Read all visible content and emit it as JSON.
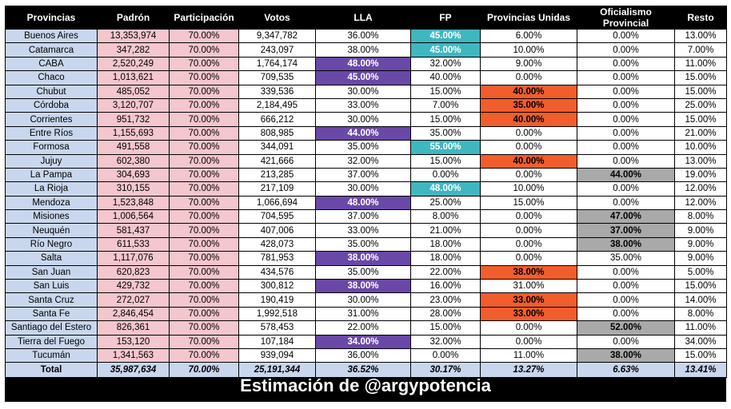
{
  "headers": [
    "Provincias",
    "Padrón",
    "Participación",
    "Votos",
    "LLA",
    "FP",
    "Provincias Unidas",
    "Oficialismo Provincial",
    "Resto"
  ],
  "rows": [
    {
      "province": "Buenos Aires",
      "padron": "13,353,974",
      "part": "70.00%",
      "votos": "9,347,782",
      "lla": "36.00%",
      "fp": "45.00%",
      "pu": "6.00%",
      "op": "0.00%",
      "resto": "13.00%",
      "winner": "fp"
    },
    {
      "province": "Catamarca",
      "padron": "347,282",
      "part": "70.00%",
      "votos": "243,097",
      "lla": "38.00%",
      "fp": "45.00%",
      "pu": "10.00%",
      "op": "0.00%",
      "resto": "7.00%",
      "winner": "fp"
    },
    {
      "province": "CABA",
      "padron": "2,520,249",
      "part": "70.00%",
      "votos": "1,764,174",
      "lla": "48.00%",
      "fp": "32.00%",
      "pu": "9.00%",
      "op": "0.00%",
      "resto": "11.00%",
      "winner": "lla"
    },
    {
      "province": "Chaco",
      "padron": "1,013,621",
      "part": "70.00%",
      "votos": "709,535",
      "lla": "45.00%",
      "fp": "40.00%",
      "pu": "0.00%",
      "op": "0.00%",
      "resto": "15.00%",
      "winner": "lla"
    },
    {
      "province": "Chubut",
      "padron": "485,052",
      "part": "70.00%",
      "votos": "339,536",
      "lla": "30.00%",
      "fp": "15.00%",
      "pu": "40.00%",
      "op": "0.00%",
      "resto": "15.00%",
      "winner": "pu"
    },
    {
      "province": "Córdoba",
      "padron": "3,120,707",
      "part": "70.00%",
      "votos": "2,184,495",
      "lla": "33.00%",
      "fp": "7.00%",
      "pu": "35.00%",
      "op": "0.00%",
      "resto": "25.00%",
      "winner": "pu"
    },
    {
      "province": "Corrientes",
      "padron": "951,732",
      "part": "70.00%",
      "votos": "666,212",
      "lla": "30.00%",
      "fp": "15.00%",
      "pu": "40.00%",
      "op": "0.00%",
      "resto": "15.00%",
      "winner": "pu"
    },
    {
      "province": "Entre Ríos",
      "padron": "1,155,693",
      "part": "70.00%",
      "votos": "808,985",
      "lla": "44.00%",
      "fp": "35.00%",
      "pu": "0.00%",
      "op": "0.00%",
      "resto": "21.00%",
      "winner": "lla"
    },
    {
      "province": "Formosa",
      "padron": "491,558",
      "part": "70.00%",
      "votos": "344,091",
      "lla": "35.00%",
      "fp": "55.00%",
      "pu": "0.00%",
      "op": "0.00%",
      "resto": "10.00%",
      "winner": "fp"
    },
    {
      "province": "Jujuy",
      "padron": "602,380",
      "part": "70.00%",
      "votos": "421,666",
      "lla": "32.00%",
      "fp": "15.00%",
      "pu": "40.00%",
      "op": "0.00%",
      "resto": "13.00%",
      "winner": "pu"
    },
    {
      "province": "La Pampa",
      "padron": "304,693",
      "part": "70.00%",
      "votos": "213,285",
      "lla": "37.00%",
      "fp": "0.00%",
      "pu": "0.00%",
      "op": "44.00%",
      "resto": "19.00%",
      "winner": "op"
    },
    {
      "province": "La Rioja",
      "padron": "310,155",
      "part": "70.00%",
      "votos": "217,109",
      "lla": "30.00%",
      "fp": "48.00%",
      "pu": "10.00%",
      "op": "0.00%",
      "resto": "12.00%",
      "winner": "fp"
    },
    {
      "province": "Mendoza",
      "padron": "1,523,848",
      "part": "70.00%",
      "votos": "1,066,694",
      "lla": "48.00%",
      "fp": "25.00%",
      "pu": "15.00%",
      "op": "0.00%",
      "resto": "12.00%",
      "winner": "lla"
    },
    {
      "province": "Misiones",
      "padron": "1,006,564",
      "part": "70.00%",
      "votos": "704,595",
      "lla": "37.00%",
      "fp": "8.00%",
      "pu": "0.00%",
      "op": "47.00%",
      "resto": "8.00%",
      "winner": "op"
    },
    {
      "province": "Neuquén",
      "padron": "581,437",
      "part": "70.00%",
      "votos": "407,006",
      "lla": "33.00%",
      "fp": "21.00%",
      "pu": "0.00%",
      "op": "37.00%",
      "resto": "9.00%",
      "winner": "op"
    },
    {
      "province": "Río Negro",
      "padron": "611,533",
      "part": "70.00%",
      "votos": "428,073",
      "lla": "35.00%",
      "fp": "18.00%",
      "pu": "0.00%",
      "op": "38.00%",
      "resto": "9.00%",
      "winner": "op"
    },
    {
      "province": "Salta",
      "padron": "1,117,076",
      "part": "70.00%",
      "votos": "781,953",
      "lla": "38.00%",
      "fp": "18.00%",
      "pu": "0.00%",
      "op": "35.00%",
      "resto": "9.00%",
      "winner": "lla"
    },
    {
      "province": "San Juan",
      "padron": "620,823",
      "part": "70.00%",
      "votos": "434,576",
      "lla": "35.00%",
      "fp": "22.00%",
      "pu": "38.00%",
      "op": "0.00%",
      "resto": "5.00%",
      "winner": "pu"
    },
    {
      "province": "San Luis",
      "padron": "429,732",
      "part": "70.00%",
      "votos": "300,812",
      "lla": "38.00%",
      "fp": "16.00%",
      "pu": "31.00%",
      "op": "0.00%",
      "resto": "15.00%",
      "winner": "lla"
    },
    {
      "province": "Santa Cruz",
      "padron": "272,027",
      "part": "70.00%",
      "votos": "190,419",
      "lla": "30.00%",
      "fp": "23.00%",
      "pu": "33.00%",
      "op": "0.00%",
      "resto": "14.00%",
      "winner": "pu"
    },
    {
      "province": "Santa Fe",
      "padron": "2,846,454",
      "part": "70.00%",
      "votos": "1,992,518",
      "lla": "31.00%",
      "fp": "28.00%",
      "pu": "33.00%",
      "op": "0.00%",
      "resto": "8.00%",
      "winner": "pu"
    },
    {
      "province": "Santiago del Estero",
      "padron": "826,361",
      "part": "70.00%",
      "votos": "578,453",
      "lla": "22.00%",
      "fp": "15.00%",
      "pu": "0.00%",
      "op": "52.00%",
      "resto": "11.00%",
      "winner": "op"
    },
    {
      "province": "Tierra del Fuego",
      "padron": "153,120",
      "part": "70.00%",
      "votos": "107,184",
      "lla": "34.00%",
      "fp": "32.00%",
      "pu": "0.00%",
      "op": "0.00%",
      "resto": "34.00%",
      "winner": "lla"
    },
    {
      "province": "Tucumán",
      "padron": "1,341,563",
      "part": "70.00%",
      "votos": "939,094",
      "lla": "36.00%",
      "fp": "0.00%",
      "pu": "11.00%",
      "op": "38.00%",
      "resto": "15.00%",
      "winner": "op"
    }
  ],
  "total": {
    "province": "Total",
    "padron": "35,987,634",
    "part": "70.00%",
    "votos": "25,191,344",
    "lla": "36.52%",
    "fp": "30.17%",
    "pu": "13.27%",
    "op": "6.63%",
    "resto": "13.41%"
  },
  "footer": "Estimación de @argypotencia",
  "colors": {
    "lla": "#6a48a8",
    "fp": "#3fb7bf",
    "pu": "#f25d2c",
    "op": "#a9a9a9",
    "province_bg": "#c9d7ee",
    "padron_bg": "#f4c6cd"
  }
}
